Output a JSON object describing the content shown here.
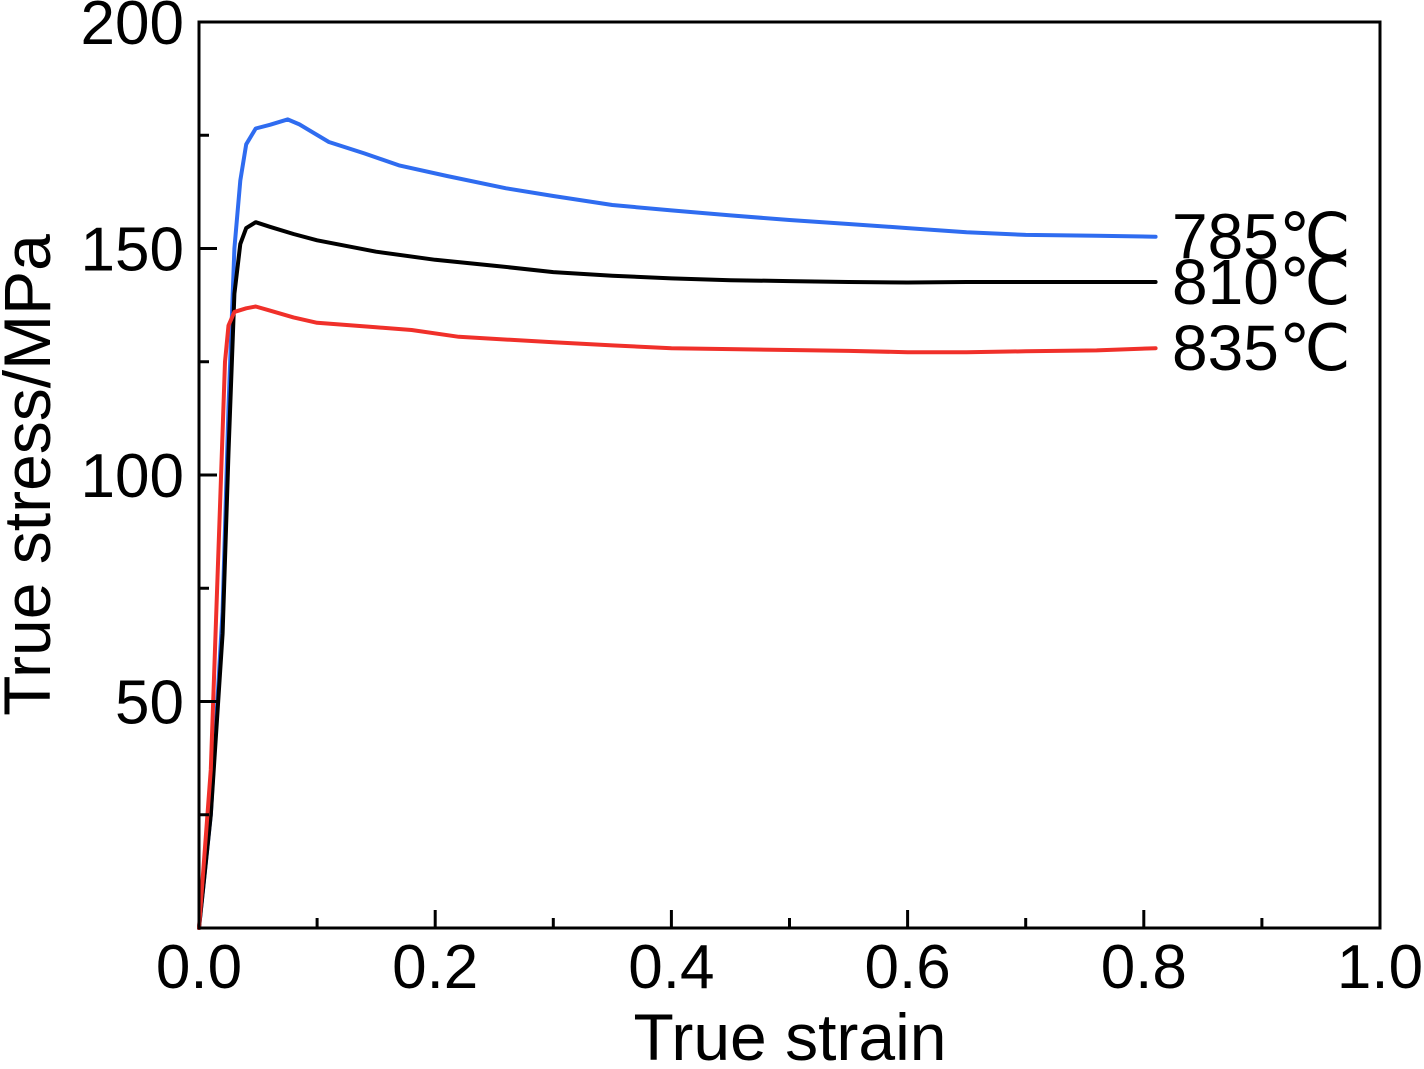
{
  "chart_data": {
    "type": "line",
    "title": "",
    "xlabel": "True strain",
    "ylabel": "True stress/MPa",
    "xlim": [
      0,
      1.0
    ],
    "ylim": [
      0,
      200
    ],
    "grid": false,
    "legend": "inline labels at right end of each series",
    "x_ticks": [
      {
        "value": 0.0,
        "label": "0.0"
      },
      {
        "value": 0.2,
        "label": "0.2"
      },
      {
        "value": 0.4,
        "label": "0.4"
      },
      {
        "value": 0.6,
        "label": "0.6"
      },
      {
        "value": 0.8,
        "label": "0.8"
      },
      {
        "value": 1.0,
        "label": "1.0"
      }
    ],
    "x_minor_ticks": [
      0.1,
      0.3,
      0.5,
      0.7,
      0.9
    ],
    "y_ticks": [
      {
        "value": 50,
        "label": "50"
      },
      {
        "value": 100,
        "label": "100"
      },
      {
        "value": 150,
        "label": "150"
      },
      {
        "value": 200,
        "label": "200"
      }
    ],
    "y_minor_ticks": [
      25,
      75,
      125,
      175
    ],
    "series": [
      {
        "name": "785℃",
        "color": "#2f6cf0",
        "points": [
          [
            0.0,
            0
          ],
          [
            0.01,
            25
          ],
          [
            0.02,
            70
          ],
          [
            0.025,
            115
          ],
          [
            0.03,
            150
          ],
          [
            0.035,
            165
          ],
          [
            0.04,
            173
          ],
          [
            0.048,
            176.5
          ],
          [
            0.06,
            177.3
          ],
          [
            0.075,
            178.5
          ],
          [
            0.085,
            177.4
          ],
          [
            0.11,
            173.5
          ],
          [
            0.14,
            171.0
          ],
          [
            0.17,
            168.3
          ],
          [
            0.21,
            166.0
          ],
          [
            0.26,
            163.3
          ],
          [
            0.3,
            161.6
          ],
          [
            0.35,
            159.6
          ],
          [
            0.4,
            158.4
          ],
          [
            0.45,
            157.3
          ],
          [
            0.5,
            156.3
          ],
          [
            0.55,
            155.4
          ],
          [
            0.6,
            154.5
          ],
          [
            0.65,
            153.6
          ],
          [
            0.7,
            153.0
          ],
          [
            0.76,
            152.8
          ],
          [
            0.81,
            152.6
          ]
        ]
      },
      {
        "name": "810℃",
        "color": "#000000",
        "points": [
          [
            0.0,
            0
          ],
          [
            0.01,
            25
          ],
          [
            0.02,
            65
          ],
          [
            0.025,
            105
          ],
          [
            0.03,
            140
          ],
          [
            0.035,
            151
          ],
          [
            0.04,
            154.5
          ],
          [
            0.048,
            155.8
          ],
          [
            0.06,
            154.8
          ],
          [
            0.08,
            153.2
          ],
          [
            0.1,
            151.8
          ],
          [
            0.15,
            149.3
          ],
          [
            0.2,
            147.5
          ],
          [
            0.25,
            146.2
          ],
          [
            0.3,
            144.8
          ],
          [
            0.35,
            144.0
          ],
          [
            0.4,
            143.4
          ],
          [
            0.45,
            143.0
          ],
          [
            0.5,
            142.8
          ],
          [
            0.55,
            142.6
          ],
          [
            0.6,
            142.5
          ],
          [
            0.65,
            142.6
          ],
          [
            0.7,
            142.6
          ],
          [
            0.76,
            142.6
          ],
          [
            0.81,
            142.6
          ]
        ]
      },
      {
        "name": "835℃",
        "color": "#f0302a",
        "points": [
          [
            0.0,
            0
          ],
          [
            0.01,
            35
          ],
          [
            0.018,
            95
          ],
          [
            0.022,
            125
          ],
          [
            0.025,
            133
          ],
          [
            0.03,
            136
          ],
          [
            0.04,
            136.8
          ],
          [
            0.048,
            137.2
          ],
          [
            0.06,
            136.3
          ],
          [
            0.08,
            134.8
          ],
          [
            0.1,
            133.6
          ],
          [
            0.15,
            132.6
          ],
          [
            0.18,
            132.0
          ],
          [
            0.22,
            130.5
          ],
          [
            0.3,
            129.3
          ],
          [
            0.35,
            128.6
          ],
          [
            0.4,
            128.0
          ],
          [
            0.45,
            127.8
          ],
          [
            0.5,
            127.6
          ],
          [
            0.55,
            127.4
          ],
          [
            0.6,
            127.1
          ],
          [
            0.65,
            127.1
          ],
          [
            0.7,
            127.3
          ],
          [
            0.76,
            127.5
          ],
          [
            0.81,
            128.0
          ]
        ]
      }
    ]
  }
}
